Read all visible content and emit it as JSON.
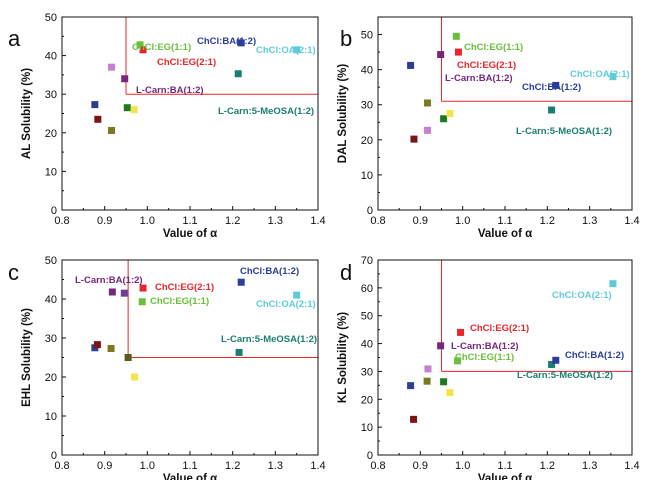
{
  "chart_data": [
    {
      "type": "scatter",
      "panel": "a",
      "xlabel": "Value of α",
      "ylabel": "AL Solubility (%)",
      "xlim": [
        0.8,
        1.4
      ],
      "ylim": [
        0,
        50
      ],
      "xticks": [
        "0.8",
        "0.9",
        "1.0",
        "1.1",
        "1.2",
        "1.3",
        "1.4"
      ],
      "yticks": [
        "0",
        "10",
        "20",
        "30",
        "40",
        "50"
      ],
      "threshold": {
        "x": 0.95,
        "y": 30,
        "color": "#e8262b"
      },
      "points": [
        {
          "x": 0.877,
          "y": 27.3,
          "color": "#2c3e8f"
        },
        {
          "x": 0.884,
          "y": 23.5,
          "color": "#7b1416"
        },
        {
          "x": 0.916,
          "y": 20.6,
          "color": "#7a7a22"
        },
        {
          "x": 0.916,
          "y": 37.0,
          "color": "#c67fd1"
        },
        {
          "x": 0.947,
          "y": 34.0,
          "color": "#76267d"
        },
        {
          "x": 0.953,
          "y": 26.5,
          "color": "#1f7a1f"
        },
        {
          "x": 0.969,
          "y": 26.0,
          "color": "#f0e54a"
        },
        {
          "x": 0.983,
          "y": 42.8,
          "color": "#6abf3a"
        },
        {
          "x": 0.99,
          "y": 41.5,
          "color": "#e8262b"
        },
        {
          "x": 1.213,
          "y": 35.3,
          "color": "#1a7f70"
        },
        {
          "x": 1.22,
          "y": 43.3,
          "color": "#2a3d9c"
        },
        {
          "x": 1.35,
          "y": 41.5,
          "color": "#5fcbdb"
        }
      ],
      "labels": [
        {
          "text": "ChCl:EG(1:1)",
          "color": "#6abf3a"
        },
        {
          "text": "ChCl:BA(1:2)",
          "color": "#2a3d9c"
        },
        {
          "text": "ChCl:OA(2:1)",
          "color": "#5fcbdb"
        },
        {
          "text": "ChCl:EG(2:1)",
          "color": "#e8262b"
        },
        {
          "text": "L-Carn:BA(1:2)",
          "color": "#76267d"
        },
        {
          "text": "L-Carn:5-MeOSA(1:2)",
          "color": "#1a7f70"
        }
      ]
    },
    {
      "type": "scatter",
      "panel": "b",
      "xlabel": "Value of α",
      "ylabel": "DAL Solubility (%)",
      "xlim": [
        0.8,
        1.4
      ],
      "ylim": [
        0,
        55
      ],
      "xticks": [
        "0.8",
        "0.9",
        "1.0",
        "1.1",
        "1.2",
        "1.3",
        "1.4"
      ],
      "yticks": [
        "0",
        "10",
        "20",
        "30",
        "40",
        "50"
      ],
      "threshold": {
        "x": 0.95,
        "y": 31,
        "color": "#e8262b"
      },
      "points": [
        {
          "x": 0.877,
          "y": 41.2,
          "color": "#2c3e8f"
        },
        {
          "x": 0.885,
          "y": 20.2,
          "color": "#7b1416"
        },
        {
          "x": 0.917,
          "y": 30.5,
          "color": "#7a7a22"
        },
        {
          "x": 0.917,
          "y": 22.7,
          "color": "#c67fd1"
        },
        {
          "x": 0.948,
          "y": 44.3,
          "color": "#76267d"
        },
        {
          "x": 0.955,
          "y": 26.0,
          "color": "#1f7a1f"
        },
        {
          "x": 0.97,
          "y": 27.5,
          "color": "#f0e54a"
        },
        {
          "x": 0.985,
          "y": 49.5,
          "color": "#6abf3a"
        },
        {
          "x": 0.99,
          "y": 45.0,
          "color": "#e8262b"
        },
        {
          "x": 1.21,
          "y": 28.5,
          "color": "#1a7f70"
        },
        {
          "x": 1.22,
          "y": 35.5,
          "color": "#2a3d9c"
        },
        {
          "x": 1.355,
          "y": 38.0,
          "color": "#5fcbdb"
        }
      ],
      "labels": [
        {
          "text": "ChCl:EG(1:1)",
          "color": "#6abf3a"
        },
        {
          "text": "ChCl:EG(2:1)",
          "color": "#e8262b"
        },
        {
          "text": "L-Carn:BA(1:2)",
          "color": "#76267d"
        },
        {
          "text": "ChCl:OA(2:1)",
          "color": "#5fcbdb"
        },
        {
          "text": "ChCl:BA(1:2)",
          "color": "#2a3d9c"
        },
        {
          "text": "L-Carn:5-MeOSA(1:2)",
          "color": "#1a7f70"
        }
      ]
    },
    {
      "type": "scatter",
      "panel": "c",
      "xlabel": "Value of α",
      "ylabel": "EHL Solubility (%)",
      "xlim": [
        0.8,
        1.4
      ],
      "ylim": [
        0,
        50
      ],
      "xticks": [
        "0.8",
        "0.9",
        "1.0",
        "1.1",
        "1.2",
        "1.3",
        "1.4"
      ],
      "yticks": [
        "0",
        "10",
        "20",
        "30",
        "40",
        "50"
      ],
      "threshold": {
        "x": 0.955,
        "y": 25,
        "color": "#e8262b"
      },
      "points": [
        {
          "x": 0.877,
          "y": 27.5,
          "color": "#2c3e8f"
        },
        {
          "x": 0.883,
          "y": 28.3,
          "color": "#7b1416"
        },
        {
          "x": 0.915,
          "y": 27.3,
          "color": "#7a7a22"
        },
        {
          "x": 0.918,
          "y": 41.8,
          "color": "#76267d"
        },
        {
          "x": 0.946,
          "y": 41.5,
          "color": "#6b3f8f"
        },
        {
          "x": 0.955,
          "y": 25.0,
          "color": "#5a5a1f"
        },
        {
          "x": 0.97,
          "y": 20.0,
          "color": "#f0e54a"
        },
        {
          "x": 0.988,
          "y": 39.3,
          "color": "#6abf3a"
        },
        {
          "x": 0.99,
          "y": 42.8,
          "color": "#e8262b"
        },
        {
          "x": 1.215,
          "y": 26.3,
          "color": "#1a7f70"
        },
        {
          "x": 1.22,
          "y": 44.3,
          "color": "#2a3d9c"
        },
        {
          "x": 1.35,
          "y": 41.0,
          "color": "#5fcbdb"
        }
      ],
      "labels": [
        {
          "text": "L-Carn:BA(1:2)",
          "color": "#76267d"
        },
        {
          "text": "ChCl:EG(2:1)",
          "color": "#e8262b"
        },
        {
          "text": "ChCl:EG(1:1)",
          "color": "#6abf3a"
        },
        {
          "text": "ChCl:BA(1:2)",
          "color": "#2a3d9c"
        },
        {
          "text": "ChCl:OA(2:1)",
          "color": "#5fcbdb"
        },
        {
          "text": "L-Carn:5-MeOSA(1:2)",
          "color": "#1a7f70"
        }
      ]
    },
    {
      "type": "scatter",
      "panel": "d",
      "xlabel": "Value of α",
      "ylabel": "KL Solubility (%)",
      "xlim": [
        0.8,
        1.4
      ],
      "ylim": [
        0,
        70
      ],
      "xticks": [
        "0.8",
        "0.9",
        "1.0",
        "1.1",
        "1.2",
        "1.3",
        "1.4"
      ],
      "yticks": [
        "0",
        "10",
        "20",
        "30",
        "40",
        "50",
        "60",
        "70"
      ],
      "threshold": {
        "x": 0.95,
        "y": 30,
        "color": "#e8262b"
      },
      "points": [
        {
          "x": 0.877,
          "y": 24.9,
          "color": "#2c3e8f"
        },
        {
          "x": 0.884,
          "y": 12.8,
          "color": "#7b1416"
        },
        {
          "x": 0.916,
          "y": 26.5,
          "color": "#7a7a22"
        },
        {
          "x": 0.918,
          "y": 30.9,
          "color": "#c67fd1"
        },
        {
          "x": 0.948,
          "y": 39.2,
          "color": "#76267d"
        },
        {
          "x": 0.955,
          "y": 26.3,
          "color": "#1f7a1f"
        },
        {
          "x": 0.97,
          "y": 22.4,
          "color": "#f0e54a"
        },
        {
          "x": 0.988,
          "y": 33.8,
          "color": "#6abf3a"
        },
        {
          "x": 0.995,
          "y": 44.0,
          "color": "#e8262b"
        },
        {
          "x": 1.21,
          "y": 32.5,
          "color": "#1a7f70"
        },
        {
          "x": 1.22,
          "y": 34.0,
          "color": "#2a3d9c"
        },
        {
          "x": 1.355,
          "y": 61.5,
          "color": "#5fcbdb"
        }
      ],
      "labels": [
        {
          "text": "ChCl:OA(2:1)",
          "color": "#5fcbdb"
        },
        {
          "text": "ChCl:EG(2:1)",
          "color": "#e8262b"
        },
        {
          "text": "L-Carn:BA(1:2)",
          "color": "#76267d"
        },
        {
          "text": "ChCl:BA(1:2)",
          "color": "#2a3d9c"
        },
        {
          "text": "ChCl:EG(1:1)",
          "color": "#6abf3a"
        },
        {
          "text": "L-Carn:5-MeOSA(1:2)",
          "color": "#1a7f70"
        }
      ]
    }
  ]
}
